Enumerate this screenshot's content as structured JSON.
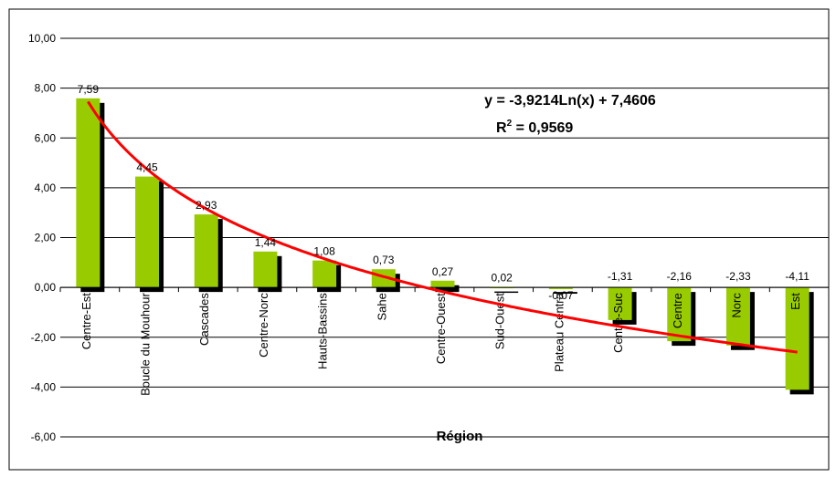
{
  "chart_data": {
    "type": "bar",
    "title": "",
    "xlabel": "Région",
    "ylabel": "",
    "ylim": [
      -6,
      10
    ],
    "yticks": [
      10,
      8,
      6,
      4,
      2,
      0,
      -2,
      -4,
      -6
    ],
    "ytick_labels": [
      "10,00",
      "8,00",
      "6,00",
      "4,00",
      "2,00",
      "0,00",
      "-2,00",
      "-4,00",
      "-6,00"
    ],
    "grid": true,
    "legend": "none",
    "categories": [
      "Centre-Est",
      "Boucle du Mouhoun",
      "Cascades",
      "Centre-Nord",
      "Hauts-Bassins",
      "Sahel",
      "Centre-Ouest",
      "Sud-Ouest",
      "Plateau Central",
      "Centre-Sud",
      "Centre",
      "Nord",
      "Est"
    ],
    "category_labels": [
      "Centre-Est",
      "Boucle du Mouhour",
      "Cascades",
      "Centre-Norc",
      "Hauts-Bassins",
      "Sahe",
      "Centre-Ouest",
      "Sud-Ouest",
      "Plateau Centra",
      "Centre-Suc",
      "Centre",
      "Norc",
      "Est"
    ],
    "values": [
      7.59,
      4.45,
      2.93,
      1.44,
      1.08,
      0.73,
      0.27,
      0.02,
      -0.07,
      -1.31,
      -2.16,
      -2.33,
      -4.11
    ],
    "value_labels": [
      "7,59",
      "4,45",
      "2,93",
      "1,44",
      "1,08",
      "0,73",
      "0,27",
      "0,02",
      "-0,07",
      "-1,31",
      "-2,16",
      "-2,33",
      "-4,11"
    ],
    "bar_color": "#99cc00",
    "shadow_color": "#000000",
    "trendline": {
      "type": "logarithmic",
      "a": -3.9214,
      "b": 7.4606,
      "color": "#ff0000",
      "equation": "y = -3,9214Ln(x) + 7,4606",
      "r2_prefix": "R",
      "r2_suffix": " = 0,9569"
    }
  }
}
